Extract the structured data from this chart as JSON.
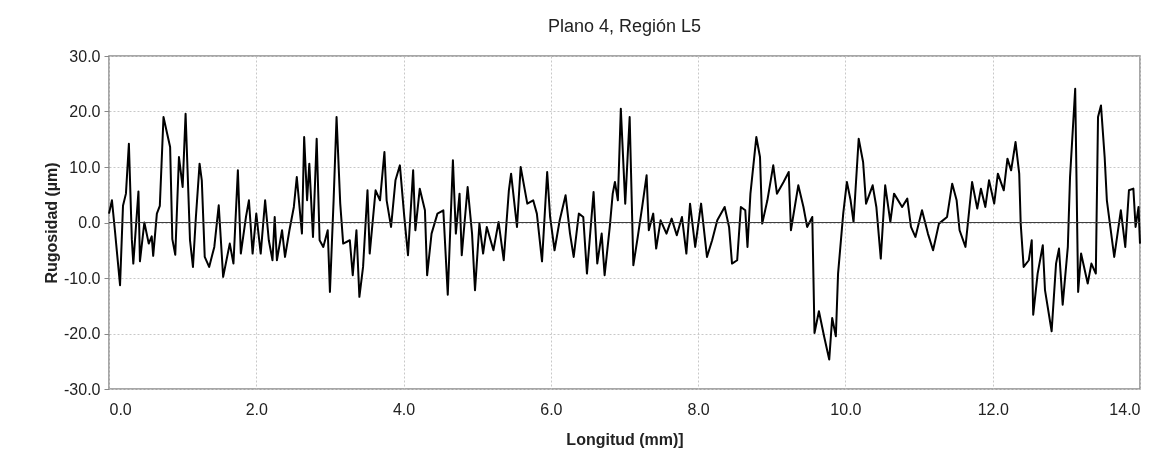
{
  "chart_data": {
    "type": "line",
    "title": "Plano 4, Región L5",
    "xlabel": "Longitud (mm)]",
    "ylabel": "Rugosidad (µm)",
    "xlim": [
      0,
      14
    ],
    "ylim": [
      -30,
      30
    ],
    "xticks": [
      {
        "value": 0,
        "label": "0.0"
      },
      {
        "value": 2,
        "label": "2.0"
      },
      {
        "value": 4,
        "label": "4.0"
      },
      {
        "value": 6,
        "label": "6.0"
      },
      {
        "value": 8,
        "label": "8.0"
      },
      {
        "value": 10,
        "label": "10.0"
      },
      {
        "value": 12,
        "label": "12.0"
      },
      {
        "value": 14,
        "label": "14.0"
      }
    ],
    "yticks": [
      {
        "value": -30,
        "label": "-30.0"
      },
      {
        "value": -20,
        "label": "-20.0"
      },
      {
        "value": -10,
        "label": "-10.0"
      },
      {
        "value": 0,
        "label": "0.0"
      },
      {
        "value": 10,
        "label": "10.0"
      },
      {
        "value": 20,
        "label": "20.0"
      },
      {
        "value": 30,
        "label": "30.0"
      }
    ],
    "grid": true,
    "legend": false,
    "marker": "none",
    "line_style": "solid",
    "ref_lines": [
      {
        "axis": "y",
        "value": 0,
        "color": "#404040"
      }
    ],
    "series": [
      {
        "color": "#000000",
        "x": [
          0,
          0.04,
          0.08,
          0.15,
          0.19,
          0.23,
          0.27,
          0.31,
          0.33,
          0.4,
          0.42,
          0.48,
          0.54,
          0.58,
          0.6,
          0.65,
          0.69,
          0.74,
          0.79,
          0.83,
          0.86,
          0.9,
          0.95,
          1.0,
          1.04,
          1.1,
          1.14,
          1.18,
          1.23,
          1.26,
          1.3,
          1.36,
          1.43,
          1.49,
          1.55,
          1.64,
          1.69,
          1.75,
          1.79,
          1.86,
          1.9,
          1.95,
          2.0,
          2.06,
          2.12,
          2.17,
          2.22,
          2.25,
          2.28,
          2.35,
          2.39,
          2.45,
          2.51,
          2.55,
          2.62,
          2.65,
          2.69,
          2.72,
          2.77,
          2.82,
          2.86,
          2.91,
          2.97,
          3.0,
          3.05,
          3.09,
          3.14,
          3.18,
          3.27,
          3.31,
          3.36,
          3.4,
          3.45,
          3.51,
          3.54,
          3.62,
          3.68,
          3.74,
          3.77,
          3.83,
          3.89,
          3.95,
          4.01,
          4.06,
          4.13,
          4.16,
          4.22,
          4.29,
          4.32,
          4.38,
          4.46,
          4.54,
          4.6,
          4.67,
          4.71,
          4.76,
          4.79,
          4.87,
          4.93,
          4.97,
          5.03,
          5.08,
          5.13,
          5.22,
          5.29,
          5.36,
          5.43,
          5.46,
          5.54,
          5.59,
          5.68,
          5.76,
          5.81,
          5.88,
          5.95,
          5.99,
          6.05,
          6.12,
          6.2,
          6.26,
          6.31,
          6.38,
          6.44,
          6.49,
          6.58,
          6.63,
          6.69,
          6.73,
          6.8,
          6.84,
          6.87,
          6.91,
          6.95,
          7.01,
          7.07,
          7.12,
          7.18,
          7.24,
          7.3,
          7.33,
          7.39,
          7.43,
          7.49,
          7.57,
          7.64,
          7.71,
          7.78,
          7.84,
          7.89,
          7.96,
          8.04,
          8.12,
          8.19,
          8.26,
          8.36,
          8.42,
          8.46,
          8.53,
          8.58,
          8.64,
          8.67,
          8.71,
          8.79,
          8.84,
          8.87,
          8.94,
          9.02,
          9.07,
          9.16,
          9.23,
          9.26,
          9.36,
          9.43,
          9.48,
          9.55,
          9.58,
          9.64,
          9.71,
          9.78,
          9.82,
          9.87,
          9.9,
          9.97,
          10.02,
          10.07,
          10.11,
          10.18,
          10.24,
          10.28,
          10.37,
          10.42,
          10.48,
          10.54,
          10.61,
          10.66,
          10.77,
          10.84,
          10.89,
          10.95,
          11.04,
          11.12,
          11.19,
          11.27,
          11.38,
          11.45,
          11.51,
          11.55,
          11.63,
          11.72,
          11.79,
          11.84,
          11.9,
          11.95,
          12.02,
          12.07,
          12.15,
          12.2,
          12.25,
          12.31,
          12.36,
          12.38,
          12.42,
          12.49,
          12.53,
          12.55,
          12.61,
          12.68,
          12.71,
          12.8,
          12.86,
          12.9,
          12.95,
          13.02,
          13.05,
          13.12,
          13.16,
          13.2,
          13.29,
          13.34,
          13.4,
          13.43,
          13.47,
          13.52,
          13.55,
          13.6,
          13.65,
          13.74,
          13.8,
          13.85,
          13.91,
          13.94,
          13.98,
          14.0
        ],
        "values": [
          1.6,
          4,
          -1.4,
          -11.3,
          3,
          5.2,
          14.2,
          -3,
          -7.4,
          5.6,
          -7,
          0,
          -3.8,
          -2.5,
          -6,
          1.6,
          3,
          19,
          16,
          13.6,
          -3,
          -5.8,
          11.8,
          6.4,
          19.6,
          -3.2,
          -8,
          1,
          10.6,
          7.6,
          -6.2,
          -8,
          -4.4,
          3.1,
          -9.8,
          -3.8,
          -7.4,
          9.4,
          -5.6,
          1,
          4,
          -5.6,
          1.6,
          -5.6,
          4,
          -3.2,
          -6.8,
          1,
          -6.8,
          -1.4,
          -6.2,
          -1.4,
          2.8,
          8.2,
          -2,
          15.4,
          4,
          10.6,
          -2.6,
          15.1,
          -3.2,
          -4.4,
          -1.4,
          -12.5,
          4,
          19,
          3.4,
          -3.8,
          -3.2,
          -9.5,
          -1.4,
          -13.4,
          -8,
          5.8,
          -5.6,
          5.8,
          4,
          12.7,
          4,
          -0.8,
          7.6,
          10.3,
          1,
          -5.9,
          9.4,
          -1.4,
          6.1,
          2.2,
          -9.5,
          -2,
          1.6,
          2.2,
          -13,
          11.2,
          -2,
          5.2,
          -5.9,
          6.4,
          -2,
          -12.2,
          -0.2,
          -5.6,
          -0.8,
          -5,
          0.1,
          -6.8,
          5.8,
          8.8,
          -0.8,
          10,
          3.4,
          4,
          1.6,
          -7,
          9.1,
          1,
          -5,
          0.4,
          4.9,
          -2,
          -6.2,
          1.6,
          1,
          -9.2,
          5.5,
          -7.4,
          -2,
          -9.5,
          -0.8,
          5.2,
          7.3,
          4,
          20.5,
          3.4,
          19,
          -7.7,
          -2.6,
          2.8,
          8.5,
          -1.4,
          1.6,
          -4.7,
          0.4,
          -2,
          0.7,
          -2.3,
          1,
          -5.6,
          3.4,
          -4.4,
          3.4,
          -6.2,
          -3.2,
          0.4,
          2.8,
          -0.8,
          -7.4,
          -6.8,
          2.8,
          2.2,
          -4.4,
          5.2,
          15.4,
          11.8,
          -0.2,
          4,
          10.3,
          5.2,
          7.3,
          9.1,
          -1.4,
          6.7,
          2.8,
          -0.8,
          1,
          -19.9,
          -16,
          -20.5,
          -24.7,
          -17.2,
          -20.5,
          -9.2,
          1.6,
          7.3,
          4,
          0.1,
          15.1,
          10.9,
          3.4,
          6.7,
          2.8,
          -6.5,
          6.7,
          0.1,
          5.2,
          2.8,
          4.3,
          -0.8,
          -2.6,
          2.2,
          -2,
          -5,
          -0.2,
          1,
          7,
          4,
          -1.4,
          -4.4,
          7.3,
          2.5,
          6.1,
          2.8,
          7.6,
          3.4,
          8.8,
          5.8,
          11.5,
          9.4,
          14.5,
          8.8,
          -0.2,
          -8,
          -6.8,
          -3.2,
          -16.6,
          -9.2,
          -4.1,
          -12.2,
          -19.6,
          -7.4,
          -4.7,
          -14.8,
          -4.4,
          8.2,
          24.1,
          -12.5,
          -5.6,
          -11,
          -7.4,
          -9.2,
          19,
          21.1,
          11.8,
          4,
          -1.1,
          -6.2,
          2.2,
          -4.4,
          5.8,
          6.1,
          -0.8,
          2.8,
          -3.8
        ]
      }
    ]
  }
}
